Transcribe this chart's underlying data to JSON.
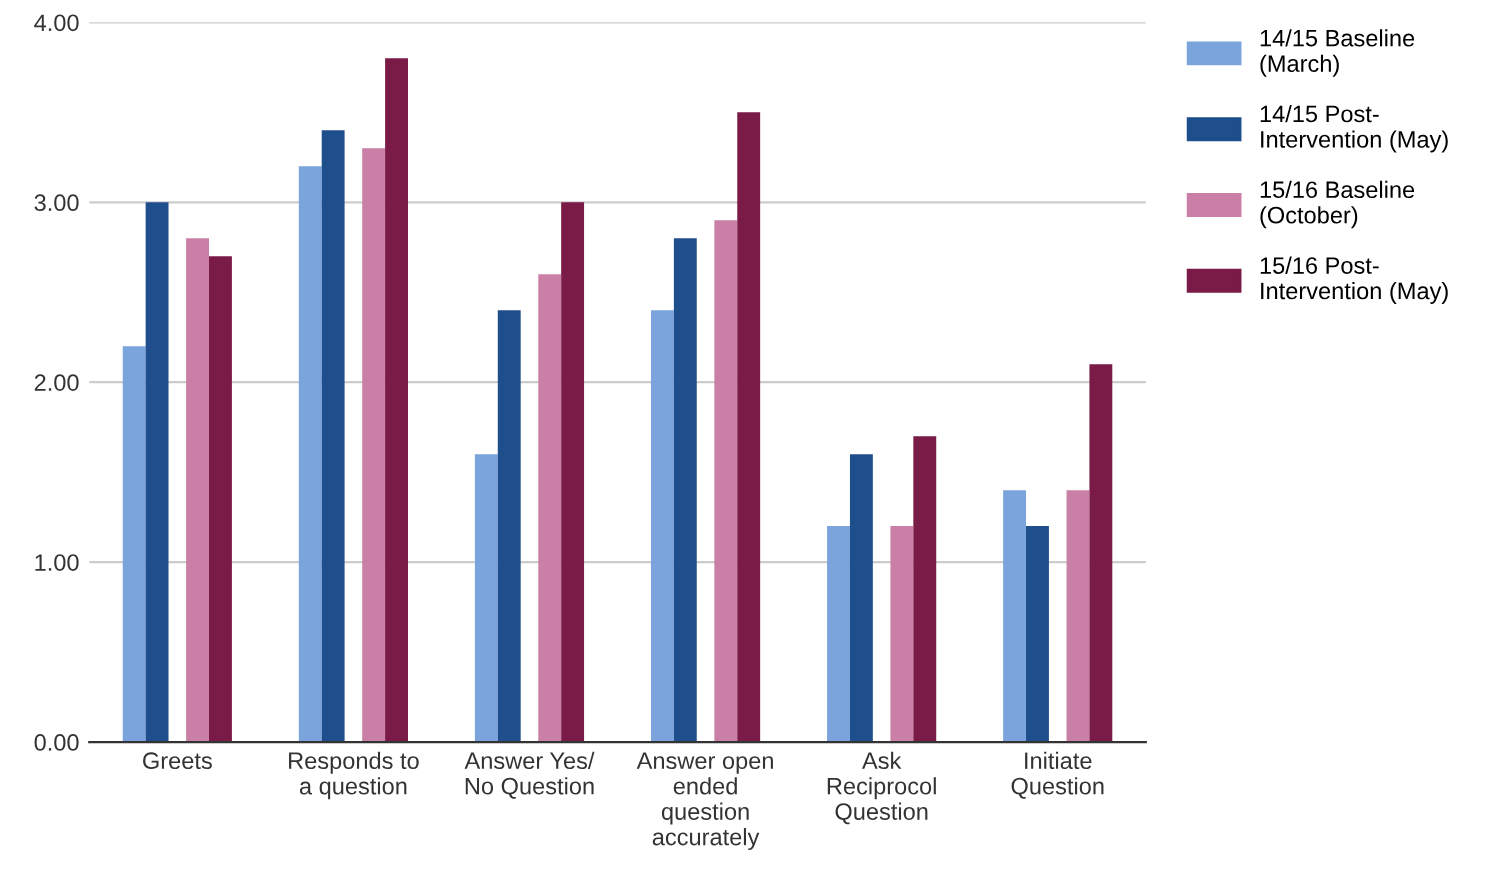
{
  "chart_data": {
    "type": "bar",
    "categories": [
      "Greets",
      "Responds to\na question",
      "Answer Yes/\nNo Question",
      "Answer open\nended\nquestion\naccurately",
      "Ask\nReciprocol\nQuestion",
      "Initiate\nQuestion"
    ],
    "series": [
      {
        "name": "14/15 Baseline\n(March)",
        "color": "#7ba3dc",
        "values": [
          2.2,
          3.2,
          1.6,
          2.4,
          1.2,
          1.4
        ]
      },
      {
        "name": "14/15 Post-\nIntervention (May)",
        "color": "#1f4e8c",
        "values": [
          3.0,
          3.4,
          2.4,
          2.8,
          1.6,
          1.2
        ]
      },
      {
        "name": "15/16 Baseline\n(October)",
        "color": "#c97fa6",
        "values": [
          2.8,
          3.3,
          2.6,
          2.9,
          1.2,
          1.4
        ]
      },
      {
        "name": "15/16 Post-\nIntervention (May)",
        "color": "#7a1a46",
        "values": [
          2.7,
          3.8,
          3.0,
          3.5,
          1.7,
          2.1
        ]
      }
    ],
    "ylim": [
      0,
      4
    ],
    "yticks": [
      {
        "value": 0,
        "label": "0.00"
      },
      {
        "value": 1,
        "label": "1.00"
      },
      {
        "value": 2,
        "label": "2.00"
      },
      {
        "value": 3,
        "label": "3.00"
      },
      {
        "value": 4,
        "label": "4.00"
      }
    ],
    "grid": "y",
    "legend": "top right"
  }
}
